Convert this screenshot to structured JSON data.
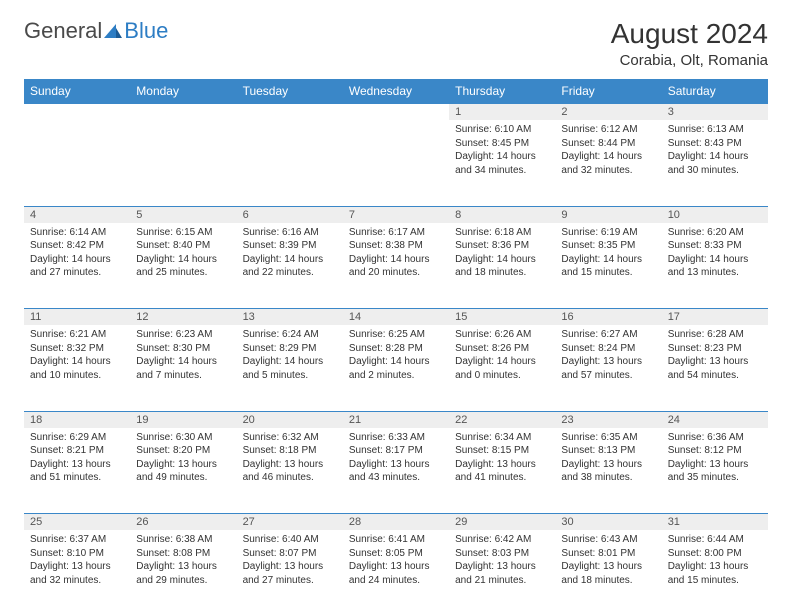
{
  "logo": {
    "general": "General",
    "blue": "Blue"
  },
  "title": "August 2024",
  "location": "Corabia, Olt, Romania",
  "colors": {
    "header_bg": "#3a87c8",
    "header_text": "#ffffff",
    "daynum_bg": "#eeeeee",
    "border": "#3a87c8",
    "logo_blue": "#2d7dc4",
    "text": "#333333"
  },
  "dayNames": [
    "Sunday",
    "Monday",
    "Tuesday",
    "Wednesday",
    "Thursday",
    "Friday",
    "Saturday"
  ],
  "weeks": [
    [
      null,
      null,
      null,
      null,
      {
        "n": "1",
        "sr": "Sunrise: 6:10 AM",
        "ss": "Sunset: 8:45 PM",
        "dl": "Daylight: 14 hours and 34 minutes."
      },
      {
        "n": "2",
        "sr": "Sunrise: 6:12 AM",
        "ss": "Sunset: 8:44 PM",
        "dl": "Daylight: 14 hours and 32 minutes."
      },
      {
        "n": "3",
        "sr": "Sunrise: 6:13 AM",
        "ss": "Sunset: 8:43 PM",
        "dl": "Daylight: 14 hours and 30 minutes."
      }
    ],
    [
      {
        "n": "4",
        "sr": "Sunrise: 6:14 AM",
        "ss": "Sunset: 8:42 PM",
        "dl": "Daylight: 14 hours and 27 minutes."
      },
      {
        "n": "5",
        "sr": "Sunrise: 6:15 AM",
        "ss": "Sunset: 8:40 PM",
        "dl": "Daylight: 14 hours and 25 minutes."
      },
      {
        "n": "6",
        "sr": "Sunrise: 6:16 AM",
        "ss": "Sunset: 8:39 PM",
        "dl": "Daylight: 14 hours and 22 minutes."
      },
      {
        "n": "7",
        "sr": "Sunrise: 6:17 AM",
        "ss": "Sunset: 8:38 PM",
        "dl": "Daylight: 14 hours and 20 minutes."
      },
      {
        "n": "8",
        "sr": "Sunrise: 6:18 AM",
        "ss": "Sunset: 8:36 PM",
        "dl": "Daylight: 14 hours and 18 minutes."
      },
      {
        "n": "9",
        "sr": "Sunrise: 6:19 AM",
        "ss": "Sunset: 8:35 PM",
        "dl": "Daylight: 14 hours and 15 minutes."
      },
      {
        "n": "10",
        "sr": "Sunrise: 6:20 AM",
        "ss": "Sunset: 8:33 PM",
        "dl": "Daylight: 14 hours and 13 minutes."
      }
    ],
    [
      {
        "n": "11",
        "sr": "Sunrise: 6:21 AM",
        "ss": "Sunset: 8:32 PM",
        "dl": "Daylight: 14 hours and 10 minutes."
      },
      {
        "n": "12",
        "sr": "Sunrise: 6:23 AM",
        "ss": "Sunset: 8:30 PM",
        "dl": "Daylight: 14 hours and 7 minutes."
      },
      {
        "n": "13",
        "sr": "Sunrise: 6:24 AM",
        "ss": "Sunset: 8:29 PM",
        "dl": "Daylight: 14 hours and 5 minutes."
      },
      {
        "n": "14",
        "sr": "Sunrise: 6:25 AM",
        "ss": "Sunset: 8:28 PM",
        "dl": "Daylight: 14 hours and 2 minutes."
      },
      {
        "n": "15",
        "sr": "Sunrise: 6:26 AM",
        "ss": "Sunset: 8:26 PM",
        "dl": "Daylight: 14 hours and 0 minutes."
      },
      {
        "n": "16",
        "sr": "Sunrise: 6:27 AM",
        "ss": "Sunset: 8:24 PM",
        "dl": "Daylight: 13 hours and 57 minutes."
      },
      {
        "n": "17",
        "sr": "Sunrise: 6:28 AM",
        "ss": "Sunset: 8:23 PM",
        "dl": "Daylight: 13 hours and 54 minutes."
      }
    ],
    [
      {
        "n": "18",
        "sr": "Sunrise: 6:29 AM",
        "ss": "Sunset: 8:21 PM",
        "dl": "Daylight: 13 hours and 51 minutes."
      },
      {
        "n": "19",
        "sr": "Sunrise: 6:30 AM",
        "ss": "Sunset: 8:20 PM",
        "dl": "Daylight: 13 hours and 49 minutes."
      },
      {
        "n": "20",
        "sr": "Sunrise: 6:32 AM",
        "ss": "Sunset: 8:18 PM",
        "dl": "Daylight: 13 hours and 46 minutes."
      },
      {
        "n": "21",
        "sr": "Sunrise: 6:33 AM",
        "ss": "Sunset: 8:17 PM",
        "dl": "Daylight: 13 hours and 43 minutes."
      },
      {
        "n": "22",
        "sr": "Sunrise: 6:34 AM",
        "ss": "Sunset: 8:15 PM",
        "dl": "Daylight: 13 hours and 41 minutes."
      },
      {
        "n": "23",
        "sr": "Sunrise: 6:35 AM",
        "ss": "Sunset: 8:13 PM",
        "dl": "Daylight: 13 hours and 38 minutes."
      },
      {
        "n": "24",
        "sr": "Sunrise: 6:36 AM",
        "ss": "Sunset: 8:12 PM",
        "dl": "Daylight: 13 hours and 35 minutes."
      }
    ],
    [
      {
        "n": "25",
        "sr": "Sunrise: 6:37 AM",
        "ss": "Sunset: 8:10 PM",
        "dl": "Daylight: 13 hours and 32 minutes."
      },
      {
        "n": "26",
        "sr": "Sunrise: 6:38 AM",
        "ss": "Sunset: 8:08 PM",
        "dl": "Daylight: 13 hours and 29 minutes."
      },
      {
        "n": "27",
        "sr": "Sunrise: 6:40 AM",
        "ss": "Sunset: 8:07 PM",
        "dl": "Daylight: 13 hours and 27 minutes."
      },
      {
        "n": "28",
        "sr": "Sunrise: 6:41 AM",
        "ss": "Sunset: 8:05 PM",
        "dl": "Daylight: 13 hours and 24 minutes."
      },
      {
        "n": "29",
        "sr": "Sunrise: 6:42 AM",
        "ss": "Sunset: 8:03 PM",
        "dl": "Daylight: 13 hours and 21 minutes."
      },
      {
        "n": "30",
        "sr": "Sunrise: 6:43 AM",
        "ss": "Sunset: 8:01 PM",
        "dl": "Daylight: 13 hours and 18 minutes."
      },
      {
        "n": "31",
        "sr": "Sunrise: 6:44 AM",
        "ss": "Sunset: 8:00 PM",
        "dl": "Daylight: 13 hours and 15 minutes."
      }
    ]
  ]
}
